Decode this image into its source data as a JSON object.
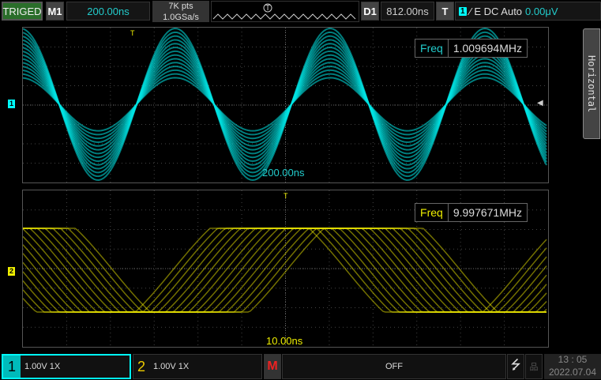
{
  "top_bar": {
    "trigger_status": "TRIGED",
    "menu_label": "M1",
    "timebase": "200.00ns",
    "mem_depth": "7K pts",
    "sample_rate": "1.0GSa/s",
    "delay_label": "D1",
    "delay": "812.00ns",
    "trigger_label": "T",
    "trigger_source": "1",
    "trigger_info": "∕ E DC Auto",
    "trigger_level": "0.00μV"
  },
  "side_tab": {
    "label": "Horizontal"
  },
  "main_panel": {
    "channel_marker": "1",
    "freq_label": "Freq",
    "freq_value": "1.009694MHz",
    "timebase_label": "200.00ns",
    "color": "#00e5e5"
  },
  "zoom_panel": {
    "channel_marker": "2",
    "freq_label": "Freq",
    "freq_value": "9.997671MHz",
    "timebase_label": "10.00ns",
    "color": "#e5e000"
  },
  "bottom_bar": {
    "ch1_num": "1",
    "ch1_info": "1.00V 1X",
    "ch2_num": "2",
    "ch2_info": "1.00V 1X",
    "math_label": "M",
    "math_status": "OFF",
    "time": "13 : 05",
    "date": "2022.07.04"
  },
  "colors": {
    "ch1": "#00e5e5",
    "ch2": "#e5e000",
    "triged": "#2a6e2a"
  }
}
